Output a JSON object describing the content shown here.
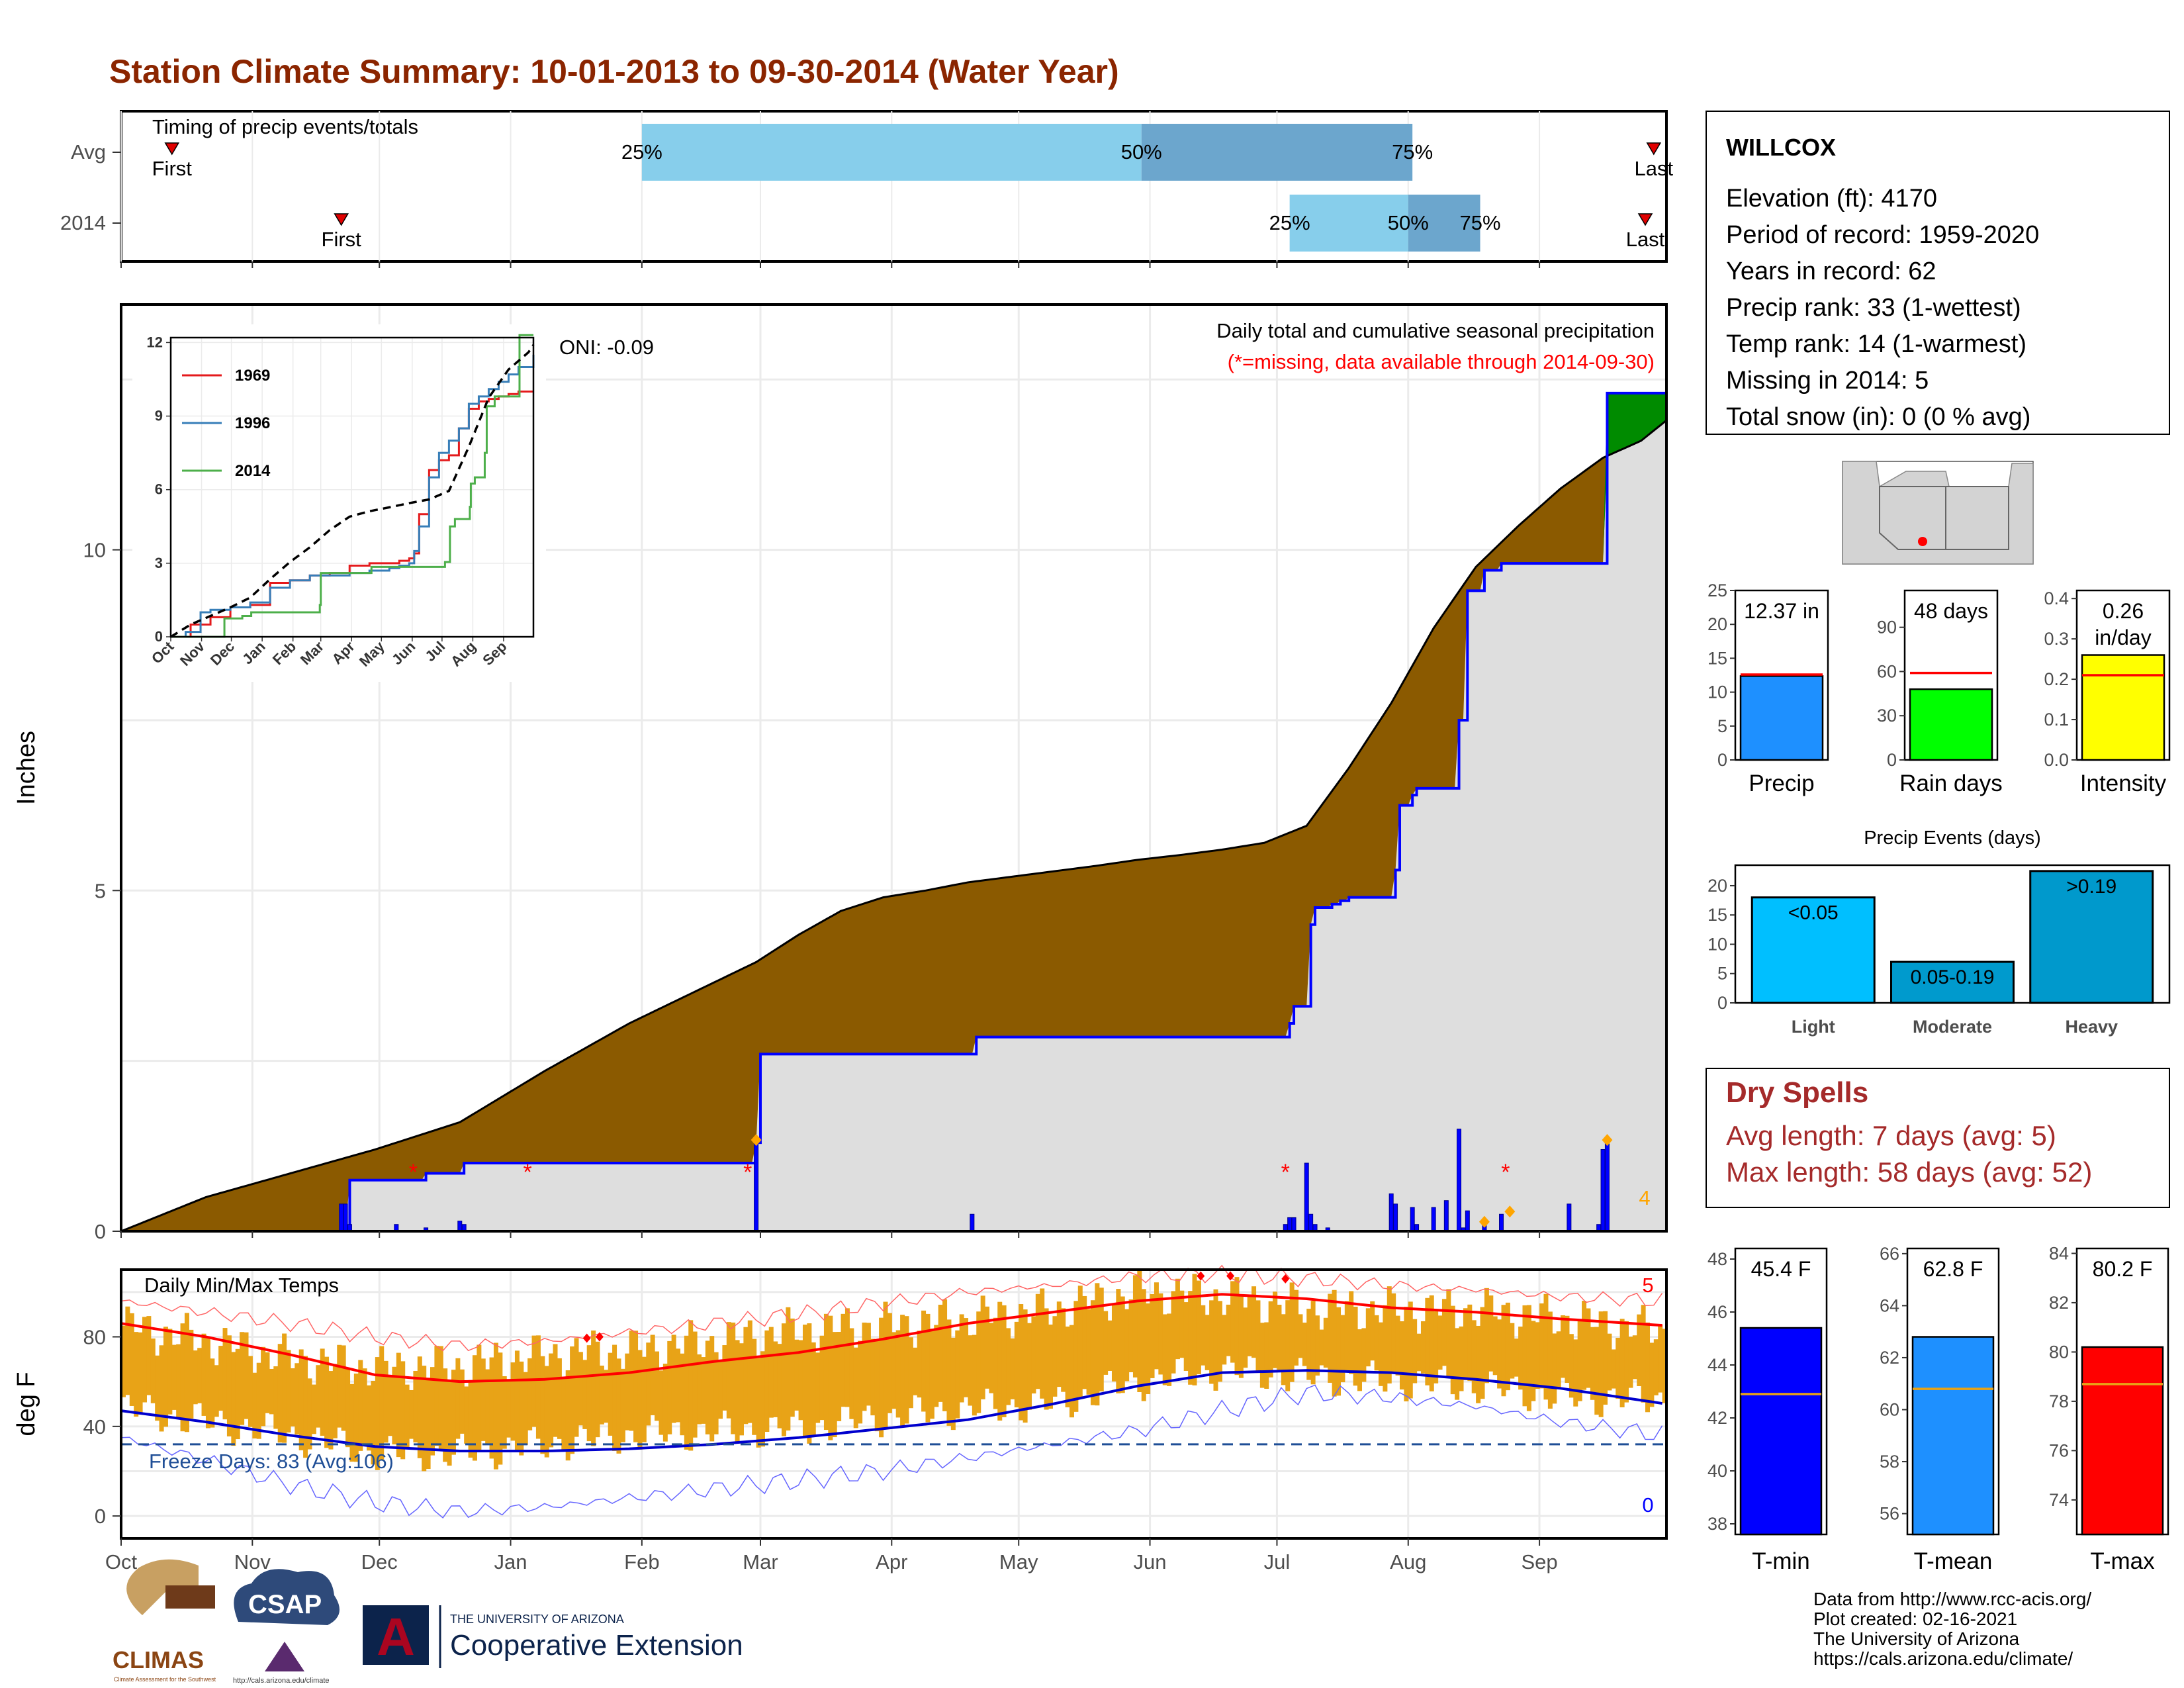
{
  "title": "Station Climate Summary: 10-01-2013 to 09-30-2014 (Water Year)",
  "colors": {
    "title": "#8B2500",
    "brown": "#8B5A00",
    "green": "#008B00",
    "light_blue": "#87CEEB",
    "steel_blue": "#6CA6CD",
    "bar_blue": "#0000FF",
    "gold": "#E8A317",
    "red": "#FF0000",
    "dark_red": "#A52A2A",
    "navy": "#00008B",
    "gray_fill": "#DEDEDE"
  },
  "month_labels": [
    "Oct",
    "Nov",
    "Dec",
    "Jan",
    "Feb",
    "Mar",
    "Apr",
    "May",
    "Jun",
    "Jul",
    "Aug",
    "Sep"
  ],
  "month_days": [
    0,
    31,
    61,
    92,
    123,
    151,
    182,
    212,
    243,
    273,
    304,
    335
  ],
  "timing_panel": {
    "title": "Timing of precip events/totals",
    "rows": [
      {
        "label": "Avg",
        "first_label": "First",
        "first_day": 12,
        "last_label": "Last",
        "last_day": 362,
        "p25_day": 123,
        "p50_day": 241,
        "p75_day": 305,
        "p25": "25%",
        "p50": "50%",
        "p75": "75%"
      },
      {
        "label": "2014",
        "first_label": "First",
        "first_day": 52,
        "last_label": "Last",
        "last_day": 360,
        "p25_day": 276,
        "p50_day": 304,
        "p75_day": 321,
        "p25": "25%",
        "p50": "50%",
        "p75": "75%"
      }
    ]
  },
  "chart_data": [
    {
      "type": "area",
      "title": "Daily total and cumulative seasonal precipitation",
      "subtitle": "(*=missing, data available through 2014-09-30)",
      "ylabel": "Inches",
      "oni_label": "ONI: -0.09",
      "xlim_days": [
        0,
        365
      ],
      "ylim": [
        0,
        13.6
      ],
      "yticks": [
        0,
        5,
        10
      ],
      "avg_cumulative": {
        "days": [
          0,
          20,
          40,
          60,
          80,
          100,
          120,
          140,
          150,
          160,
          170,
          180,
          190,
          200,
          210,
          220,
          230,
          240,
          250,
          260,
          270,
          280,
          290,
          300,
          310,
          320,
          330,
          340,
          350,
          359,
          360,
          365
        ],
        "values": [
          0,
          0.5,
          0.85,
          1.2,
          1.6,
          2.35,
          3.05,
          3.65,
          3.95,
          4.35,
          4.7,
          4.9,
          5.0,
          5.12,
          5.2,
          5.28,
          5.36,
          5.45,
          5.52,
          5.6,
          5.7,
          5.95,
          6.8,
          7.75,
          8.85,
          9.75,
          10.35,
          10.9,
          11.35,
          11.6,
          11.65,
          11.9
        ]
      },
      "cumulative_2014": {
        "days": [
          0,
          52,
          54,
          65,
          72,
          80,
          81,
          121,
          150,
          151,
          201,
          202,
          275,
          276,
          277,
          280,
          281,
          282,
          285,
          286,
          288,
          290,
          294,
          300,
          301,
          302,
          305,
          306,
          310,
          316,
          317,
          318,
          322,
          326,
          350,
          351,
          365
        ],
        "values": [
          0,
          0,
          0.75,
          0.75,
          0.85,
          0.85,
          1.0,
          1.0,
          1.3,
          2.6,
          2.6,
          2.85,
          2.85,
          3.05,
          3.3,
          3.3,
          4.5,
          4.75,
          4.75,
          4.8,
          4.85,
          4.9,
          4.9,
          4.9,
          5.3,
          6.25,
          6.4,
          6.5,
          6.5,
          7.5,
          7.5,
          9.4,
          9.7,
          9.8,
          9.8,
          12.3,
          12.3
        ]
      },
      "daily_bars": {
        "days": [
          52,
          53,
          54,
          65,
          72,
          80,
          81,
          150,
          201,
          275,
          276,
          277,
          280,
          281,
          282,
          285,
          300,
          301,
          305,
          306,
          310,
          313,
          316,
          317,
          318,
          322,
          326,
          342,
          349,
          350,
          351
        ],
        "values": [
          0.4,
          0.4,
          0.1,
          0.1,
          0.05,
          0.15,
          0.1,
          1.3,
          0.25,
          0.1,
          0.2,
          0.2,
          1.0,
          0.25,
          0.1,
          0.05,
          0.55,
          0.4,
          0.35,
          0.1,
          0.35,
          0.45,
          1.5,
          0.05,
          0.3,
          0.1,
          0.25,
          0.4,
          0.1,
          1.2,
          1.3
        ]
      },
      "missing_days": [
        69,
        96,
        148,
        275,
        327
      ],
      "max_markers_days": [
        150,
        322,
        328,
        351
      ],
      "count_label": "4"
    },
    {
      "type": "line",
      "title": "",
      "x_tick_labels": [
        "Oct",
        "Nov",
        "Dec",
        "Jan",
        "Feb",
        "Mar",
        "Apr",
        "May",
        "Jun",
        "Jul",
        "Aug",
        "Sep"
      ],
      "y_tick_labels": [
        "0",
        "3",
        "6",
        "9",
        "12"
      ],
      "ylim": [
        0,
        12.2
      ],
      "series": [
        {
          "name": "1969",
          "color": "#E41A1C",
          "days": [
            0,
            20,
            40,
            60,
            80,
            100,
            120,
            140,
            160,
            180,
            200,
            220,
            230,
            240,
            245,
            250,
            260,
            270,
            280,
            290,
            300,
            310,
            320,
            330,
            340,
            350,
            365
          ],
          "values": [
            0,
            0.5,
            0.8,
            1.2,
            1.3,
            2.2,
            2.3,
            2.5,
            2.6,
            2.9,
            3.0,
            3.0,
            3.1,
            3.2,
            3.4,
            5.0,
            6.8,
            7.2,
            7.4,
            8.5,
            9.3,
            9.6,
            9.7,
            9.8,
            9.9,
            10.0,
            10.0
          ]
        },
        {
          "name": "1996",
          "color": "#377EB8",
          "days": [
            0,
            15,
            30,
            40,
            60,
            80,
            100,
            120,
            140,
            160,
            180,
            200,
            220,
            230,
            240,
            245,
            250,
            260,
            270,
            280,
            290,
            300,
            310,
            320,
            330,
            340,
            350,
            365
          ],
          "values": [
            0,
            0.2,
            1.0,
            1.1,
            1.2,
            1.4,
            2.0,
            2.3,
            2.5,
            2.5,
            2.6,
            2.7,
            2.8,
            2.9,
            3.0,
            3.5,
            4.5,
            6.5,
            7.5,
            8.0,
            8.5,
            9.5,
            9.8,
            10.1,
            10.4,
            10.7,
            11.0,
            11.5
          ]
        },
        {
          "name": "2014",
          "color": "#4DAF4A",
          "days": [
            0,
            52,
            54,
            72,
            81,
            150,
            151,
            201,
            202,
            276,
            281,
            286,
            301,
            302,
            306,
            316,
            318,
            326,
            350,
            351,
            365
          ],
          "values": [
            0,
            0,
            0.75,
            0.85,
            1.0,
            1.3,
            2.6,
            2.6,
            2.85,
            3.05,
            4.5,
            4.8,
            5.3,
            6.25,
            6.5,
            7.5,
            9.4,
            9.8,
            9.8,
            12.3,
            12.3
          ]
        },
        {
          "name": "",
          "color": "#000000",
          "days": [
            0,
            20,
            40,
            60,
            80,
            100,
            120,
            140,
            160,
            180,
            200,
            220,
            240,
            260,
            280,
            300,
            320,
            340,
            360,
            365
          ],
          "values": [
            0,
            0.5,
            0.85,
            1.2,
            1.6,
            2.35,
            3.05,
            3.65,
            4.35,
            4.9,
            5.12,
            5.28,
            5.45,
            5.6,
            5.95,
            7.75,
            9.75,
            10.9,
            11.6,
            11.9
          ]
        }
      ]
    },
    {
      "type": "bar",
      "title": "Daily Min/Max Temps",
      "ylabel": "deg F",
      "ylim": [
        -10,
        110
      ],
      "yticks": [
        0,
        40,
        80
      ],
      "freeze_label": "Freeze Days: 83 (Avg:106)",
      "freeze_line": 32,
      "max_count_label": "5",
      "min_count_label": "0",
      "avg_tmax": {
        "days": [
          0,
          20,
          40,
          60,
          80,
          100,
          120,
          140,
          160,
          180,
          200,
          220,
          240,
          260,
          280,
          300,
          320,
          340,
          365
        ],
        "values": [
          86,
          80,
          72,
          63,
          60,
          61,
          64,
          69,
          73,
          79,
          86,
          91,
          96,
          99,
          97,
          93,
          91,
          88,
          85
        ]
      },
      "avg_tmin": {
        "days": [
          0,
          20,
          40,
          60,
          80,
          100,
          120,
          140,
          160,
          180,
          200,
          220,
          240,
          260,
          280,
          300,
          320,
          340,
          365
        ],
        "values": [
          47,
          42,
          36,
          31,
          29,
          29,
          30,
          32,
          35,
          39,
          43,
          50,
          58,
          64,
          65,
          64,
          61,
          57,
          50
        ]
      },
      "record_max": {
        "days": [
          0,
          20,
          40,
          60,
          80,
          100,
          120,
          140,
          160,
          180,
          200,
          220,
          240,
          260,
          280,
          300,
          320,
          340,
          365
        ],
        "values": [
          96,
          91,
          86,
          80,
          76,
          78,
          82,
          86,
          90,
          95,
          100,
          103,
          107,
          108,
          106,
          103,
          101,
          98,
          96
        ]
      },
      "record_min": {
        "days": [
          0,
          20,
          40,
          60,
          80,
          100,
          120,
          140,
          160,
          180,
          200,
          220,
          240,
          260,
          280,
          300,
          320,
          340,
          365
        ],
        "values": [
          35,
          25,
          14,
          6,
          2,
          4,
          8,
          12,
          16,
          20,
          26,
          32,
          38,
          47,
          55,
          53,
          49,
          42,
          36
        ]
      },
      "obs_high": {
        "days": [
          0,
          20,
          40,
          60,
          80,
          100,
          120,
          140,
          160,
          180,
          200,
          220,
          240,
          260,
          280,
          300,
          320,
          340,
          365
        ],
        "values": [
          85,
          78,
          70,
          66,
          67,
          72,
          74,
          78,
          83,
          85,
          88,
          92,
          100,
          98,
          93,
          92,
          92,
          88,
          82
        ]
      },
      "obs_low": {
        "days": [
          0,
          20,
          40,
          60,
          80,
          100,
          120,
          140,
          160,
          180,
          200,
          220,
          240,
          260,
          280,
          300,
          320,
          340,
          365
        ],
        "values": [
          48,
          42,
          36,
          28,
          28,
          32,
          36,
          38,
          39,
          44,
          48,
          50,
          60,
          65,
          62,
          60,
          58,
          53,
          52
        ]
      }
    },
    {
      "type": "bar",
      "title": "",
      "categories": [
        "Precip",
        "Rain days",
        "Intensity"
      ],
      "values": [
        12.37,
        48,
        0.26
      ],
      "labels": [
        "12.37 in",
        "48 days",
        "0.26 in/day"
      ],
      "averages": [
        12.6,
        59,
        0.21
      ],
      "ylims": [
        [
          0,
          25
        ],
        [
          0,
          115
        ],
        [
          0,
          0.42
        ]
      ],
      "tick_labels": [
        [
          "0",
          "5",
          "10",
          "15",
          "20",
          "25"
        ],
        [
          "0",
          "30",
          "60",
          "90"
        ],
        [
          "0.0",
          "0.1",
          "0.2",
          "0.3",
          "0.4"
        ]
      ],
      "tick_values": [
        [
          0,
          5,
          10,
          15,
          20,
          25
        ],
        [
          0,
          30,
          60,
          90
        ],
        [
          0,
          0.1,
          0.2,
          0.3,
          0.4
        ]
      ],
      "bar_colors": [
        "#1E90FF",
        "#00FF00",
        "#FFFF00"
      ]
    },
    {
      "type": "bar",
      "title": "Precip Events (days)",
      "categories": [
        "Light",
        "Moderate",
        "Heavy"
      ],
      "values": [
        18,
        7,
        22.5
      ],
      "labels": [
        "<0.05",
        "0.05-0.19",
        ">0.19"
      ],
      "ylim": [
        0,
        23.5
      ],
      "tick_labels": [
        "0",
        "5",
        "10",
        "15",
        "20"
      ],
      "bar_colors": [
        "#00BFFF",
        "#009ACD",
        "#0099CC"
      ]
    },
    {
      "type": "bar",
      "title": "",
      "categories": [
        "T-min",
        "T-mean",
        "T-max"
      ],
      "values": [
        45.4,
        62.8,
        80.2
      ],
      "labels": [
        "45.4 F",
        "62.8 F",
        "80.2 F"
      ],
      "averages": [
        42.9,
        60.8,
        78.7
      ],
      "ylims": [
        [
          37.6,
          48.4
        ],
        [
          55.2,
          66.2
        ],
        [
          72.6,
          84.2
        ]
      ],
      "tick_labels": [
        [
          "38",
          "40",
          "42",
          "44",
          "46",
          "48"
        ],
        [
          "56",
          "58",
          "60",
          "62",
          "64",
          "66"
        ],
        [
          "74",
          "76",
          "78",
          "80",
          "82",
          "84"
        ]
      ],
      "tick_values": [
        [
          38,
          40,
          42,
          44,
          46,
          48
        ],
        [
          56,
          58,
          60,
          62,
          64,
          66
        ],
        [
          74,
          76,
          78,
          80,
          82,
          84
        ]
      ],
      "bar_colors": [
        "#0000FF",
        "#1E90FF",
        "#FF0000"
      ]
    }
  ],
  "station_info": {
    "name": "WILLCOX",
    "lines": [
      "Elevation (ft): 4170",
      "Period of record: 1959-2020",
      "Years in record: 62",
      "Precip rank: 33 (1-wettest)",
      "Temp rank: 14 (1-warmest)",
      "Missing in 2014: 5",
      "Total snow (in): 0 (0 % avg)"
    ]
  },
  "dry_spells": {
    "title": "Dry Spells",
    "lines": [
      "Avg length: 7 days (avg: 5)",
      "Max length: 58 days (avg: 52)"
    ]
  },
  "footer": {
    "lines": [
      "Data from http://www.rcc-acis.org/",
      "Plot created: 02-16-2021",
      "The University of Arizona",
      "https://cals.arizona.edu/climate/"
    ]
  },
  "logos": {
    "climas": "CLIMAS",
    "climas_sub": "Climate Assessment for the Southwest",
    "csap": "CSAP",
    "csap_url": "http://cals.arizona.edu/climate",
    "ua_small": "THE UNIVERSITY OF ARIZONA",
    "ua_big": "Cooperative Extension",
    "ua_letter": "A"
  }
}
